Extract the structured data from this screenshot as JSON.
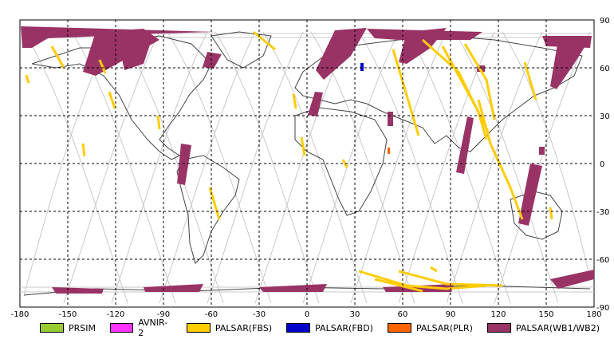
{
  "map": {
    "x_ticks": [
      "-180",
      "-150",
      "-120",
      "-90",
      "-60",
      "-30",
      "0",
      "30",
      "60",
      "90",
      "120",
      "150",
      "180"
    ],
    "y_ticks": [
      "90",
      "60",
      "30",
      "0",
      "-30",
      "-60",
      "-90"
    ],
    "colors": {
      "background": "#ffffff",
      "grid": "#000000",
      "coast": "#444444",
      "orbit": "#bdbdbd"
    }
  },
  "legend": [
    {
      "label": "PRSIM",
      "color": "#99cc33"
    },
    {
      "label": "AVNIR-2",
      "color": "#ff33ff"
    },
    {
      "label": "PALSAR(FBS)",
      "color": "#ffcc00"
    },
    {
      "label": "PALSAR(FBD)",
      "color": "#0000cc"
    },
    {
      "label": "PALSAR(PLR)",
      "color": "#ff6600"
    },
    {
      "label": "PALSAR(WB1/WB2)",
      "color": "#993366"
    }
  ]
}
